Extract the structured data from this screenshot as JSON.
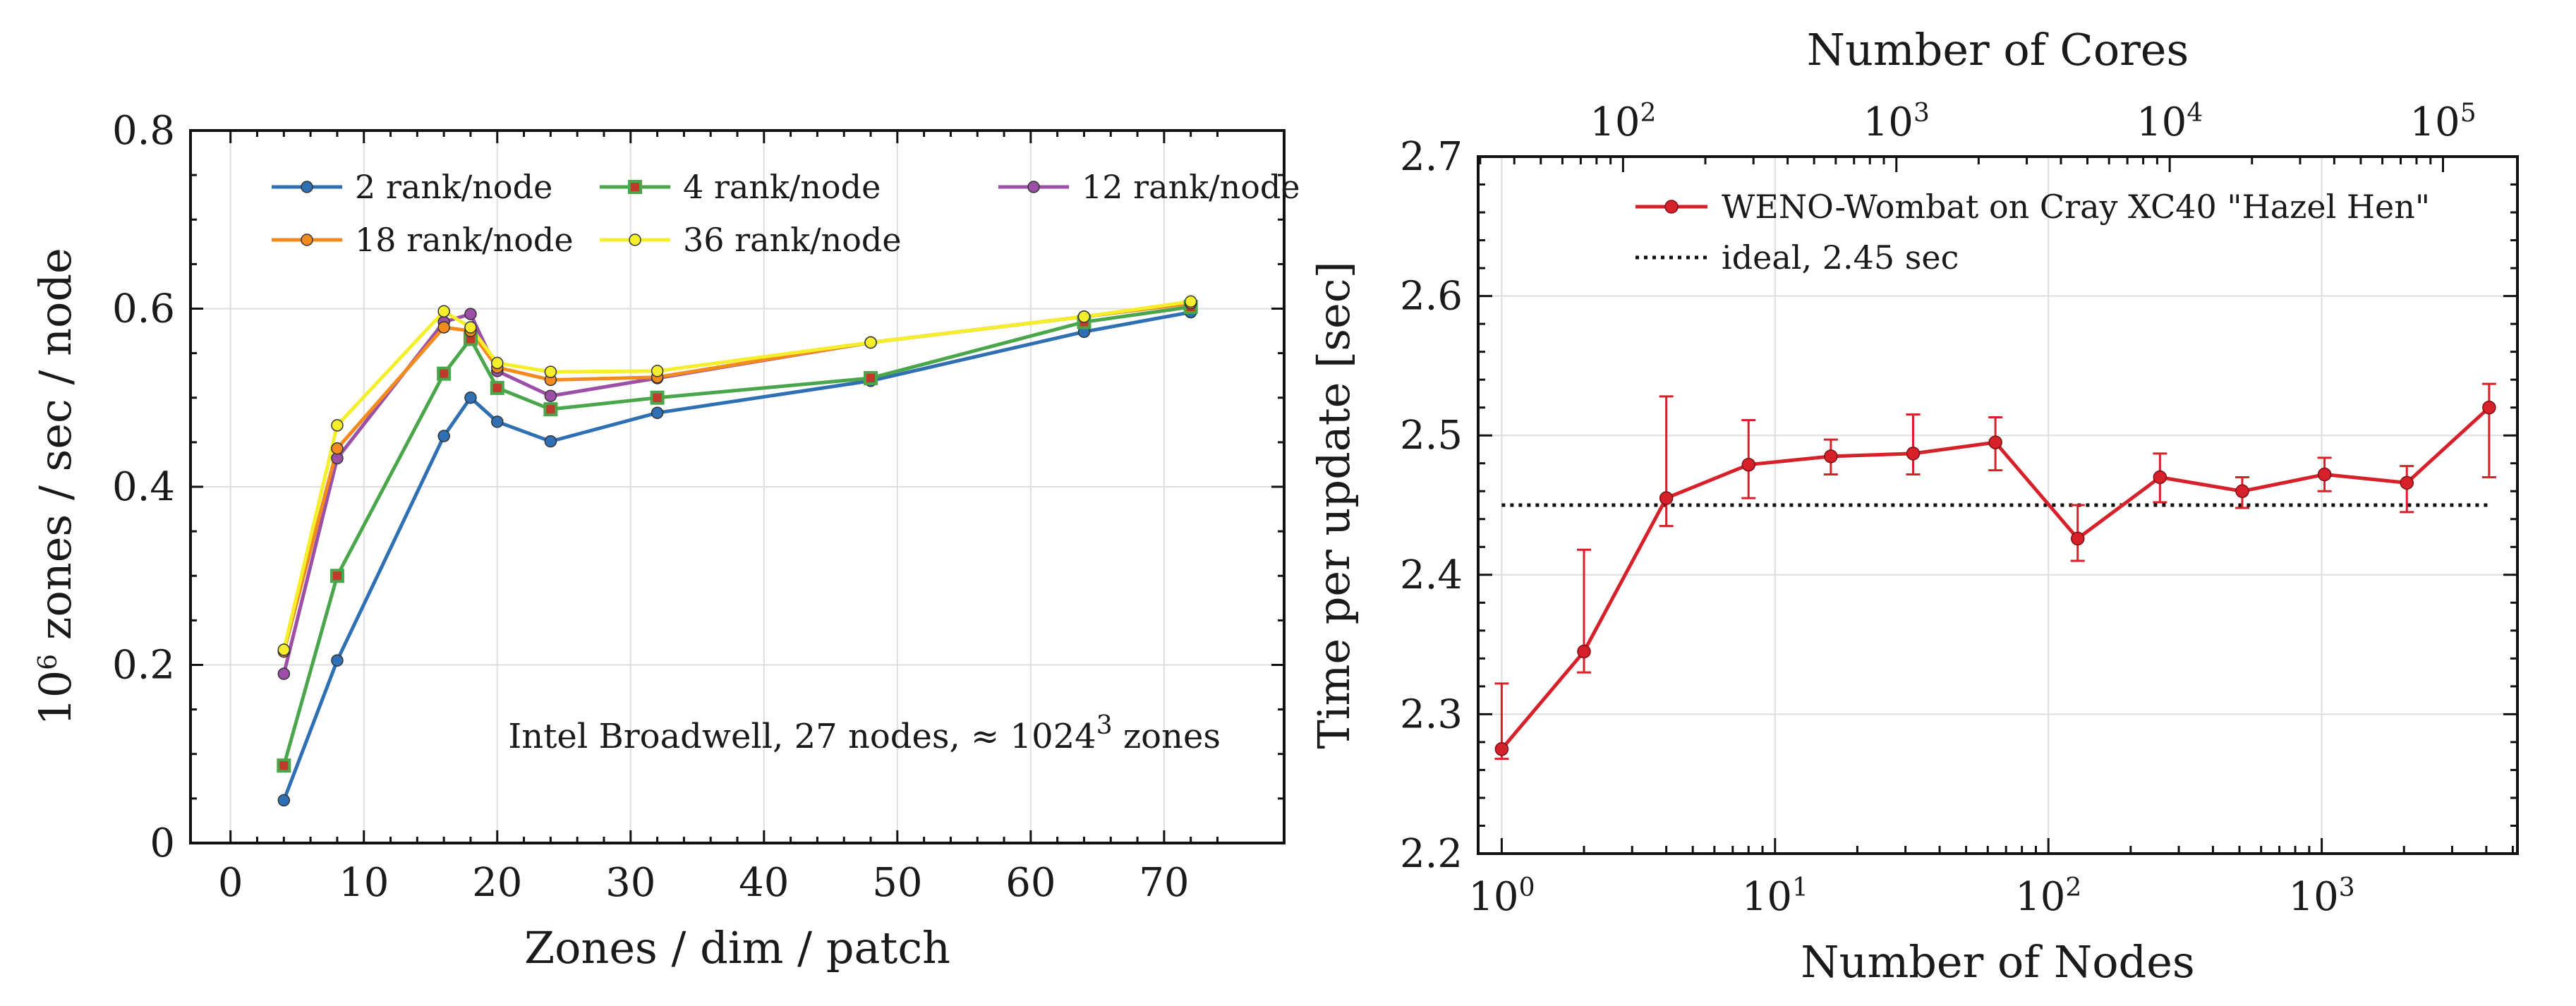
{
  "chart_data": [
    {
      "type": "line",
      "xlabel": "Zones / dim / patch",
      "ylabel": "10^6 zones / sec / node",
      "ylabel_parts": {
        "base": "10",
        "exp": "6",
        "rest": " zones / sec / node"
      },
      "xlim": [
        -3,
        79
      ],
      "ylim": [
        0,
        0.8
      ],
      "xticks": [
        0,
        10,
        20,
        30,
        40,
        50,
        60,
        70
      ],
      "yticks": [
        0,
        0.2,
        0.4,
        0.6,
        0.8
      ],
      "ytick_labels": [
        "0",
        "0.2",
        "0.4",
        "0.6",
        "0.8"
      ],
      "grid": true,
      "legend_position": "top",
      "annotation": {
        "prefix": "Intel Broadwell, 27 nodes, ≈ 1024",
        "exp": "3",
        "suffix": " zones"
      },
      "series": [
        {
          "name": "2 rank/node",
          "color": "#2f6fb3",
          "marker": "circle",
          "x": [
            4,
            8,
            16,
            18,
            20,
            24,
            32,
            48,
            64,
            72
          ],
          "y": [
            0.048,
            0.205,
            0.457,
            0.5,
            0.473,
            0.451,
            0.483,
            0.519,
            0.574,
            0.596
          ]
        },
        {
          "name": "4 rank/node",
          "color": "#4aa64a",
          "marker": "square",
          "x": [
            4,
            8,
            16,
            18,
            20,
            24,
            32,
            48,
            64,
            72
          ],
          "y": [
            0.087,
            0.3,
            0.527,
            0.566,
            0.511,
            0.487,
            0.5,
            0.522,
            0.585,
            0.602
          ]
        },
        {
          "name": "12 rank/node",
          "color": "#9b4fa6",
          "marker": "circle",
          "x": [
            4,
            8,
            16,
            18,
            20,
            24,
            32,
            48,
            64,
            72
          ],
          "y": [
            0.19,
            0.432,
            0.585,
            0.594,
            0.53,
            0.502,
            0.522,
            0.562,
            0.591,
            0.606
          ]
        },
        {
          "name": "18 rank/node",
          "color": "#f28a1e",
          "marker": "circle",
          "x": [
            4,
            8,
            16,
            18,
            20,
            24,
            32,
            48,
            64,
            72
          ],
          "y": [
            0.215,
            0.443,
            0.579,
            0.575,
            0.534,
            0.52,
            0.523,
            0.562,
            0.591,
            0.606
          ]
        },
        {
          "name": "36 rank/node",
          "color": "#f5ee2b",
          "marker": "circle",
          "x": [
            4,
            8,
            16,
            18,
            20,
            24,
            32,
            48,
            64,
            72
          ],
          "y": [
            0.217,
            0.469,
            0.597,
            0.579,
            0.539,
            0.529,
            0.53,
            0.562,
            0.591,
            0.608
          ]
        }
      ]
    },
    {
      "type": "line",
      "xscale": "log",
      "xlabel": "Number of Nodes",
      "ylabel": "Time per update [sec]",
      "top_xlabel": "Number of Cores",
      "xlim": [
        0.82,
        5200
      ],
      "ylim": [
        2.2,
        2.7
      ],
      "top_xlim": [
        29.5,
        187200
      ],
      "xticks": [
        1,
        10,
        100,
        1000
      ],
      "top_xticks": [
        100,
        1000,
        10000,
        100000
      ],
      "yticks": [
        2.2,
        2.3,
        2.4,
        2.5,
        2.6,
        2.7
      ],
      "ytick_labels": [
        "2.2",
        "2.3",
        "2.4",
        "2.5",
        "2.6",
        "2.7"
      ],
      "grid": true,
      "legend_position": "top-right",
      "series": [
        {
          "name": "WENO-Wombat on Cray XC40 \"Hazel Hen\"",
          "color": "#d6202a",
          "marker": "circle",
          "x": [
            1,
            2,
            4,
            8,
            16,
            32,
            64,
            128,
            256,
            512,
            1024,
            2048,
            4096
          ],
          "y": [
            2.275,
            2.345,
            2.455,
            2.479,
            2.485,
            2.487,
            2.495,
            2.426,
            2.47,
            2.46,
            2.472,
            2.466,
            2.52
          ],
          "err_low": [
            2.268,
            2.33,
            2.435,
            2.455,
            2.472,
            2.472,
            2.475,
            2.41,
            2.452,
            2.448,
            2.46,
            2.445,
            2.47
          ],
          "err_high": [
            2.322,
            2.418,
            2.528,
            2.511,
            2.497,
            2.515,
            2.513,
            2.45,
            2.487,
            2.47,
            2.484,
            2.478,
            2.537
          ]
        },
        {
          "name": "ideal, 2.45 sec",
          "color": "#111111",
          "style": "dotted",
          "x": [
            1,
            4096
          ],
          "y": [
            2.45,
            2.45
          ]
        }
      ]
    }
  ]
}
